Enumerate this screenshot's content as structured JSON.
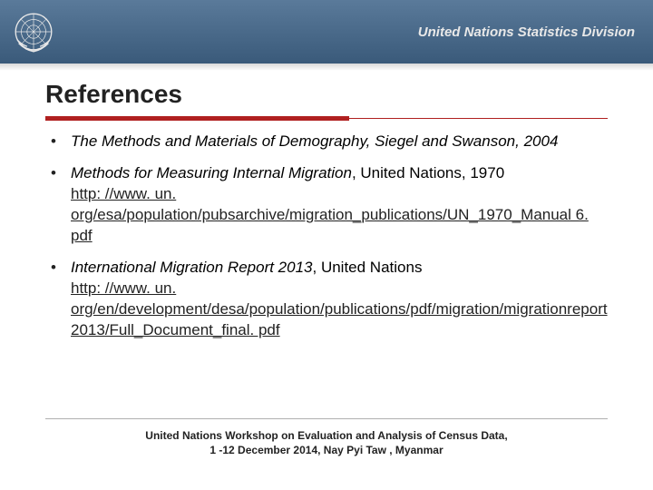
{
  "header": {
    "org_title": "United Nations Statistics Division"
  },
  "slide": {
    "title": "References"
  },
  "references": [
    {
      "title_italic": "The Methods and Materials of Demography, Siegel and Swanson, 2004",
      "tail_plain": "",
      "url": ""
    },
    {
      "title_italic": "Methods for Measuring Internal Migration",
      "tail_plain": ",  United Nations, 1970",
      "url": "http: //www. un. org/esa/population/pubsarchive/migration_publications/UN_1970_Manual 6. pdf"
    },
    {
      "title_italic": "International Migration Report 2013",
      "tail_plain": ", United Nations",
      "url": "http: //www. un. org/en/development/desa/population/publications/pdf/migration/migrationreport 2013/Full_Document_final. pdf"
    }
  ],
  "footer": {
    "line1": "United Nations Workshop on  Evaluation and Analysis of Census Data,",
    "line2": "1 -12 December 2014,  Nay Pyi Taw , Myanmar"
  },
  "colors": {
    "accent": "#b02020",
    "header_gradient_top": "#5a7a9a",
    "header_gradient_bottom": "#3a5a7a",
    "text": "#222222",
    "background": "#ffffff"
  }
}
